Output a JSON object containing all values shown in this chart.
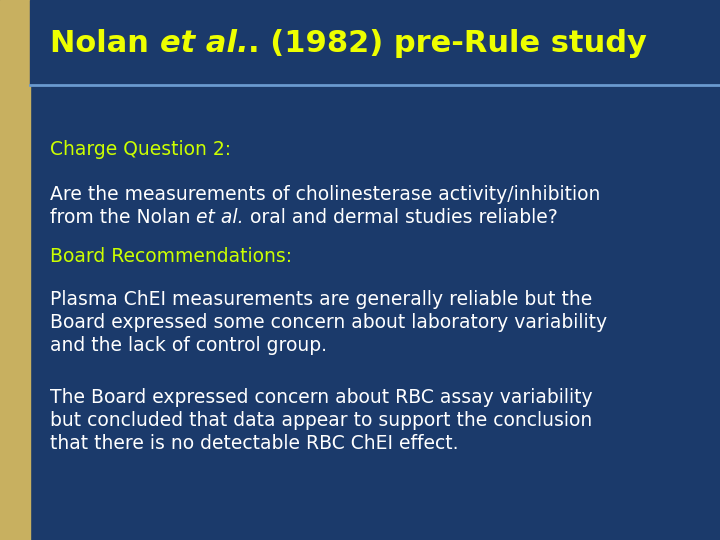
{
  "title_color": "#EEFF00",
  "title_bg_color": "#1B3A6B",
  "title_fontsize": 22,
  "body_bg_color": "#1B3A6B",
  "left_bar_color": "#C8B060",
  "divider_color": "#6A9AD0",
  "charge_label": "Charge Question 2:",
  "charge_color": "#CCFF00",
  "body_text_color": "#FFFFFF",
  "body_fontsize": 13.5,
  "label_fontsize": 13.5,
  "board_label": "Board Recommendations:",
  "para2_line1": "Plasma ChEI measurements are generally reliable but the",
  "para2_line2": "Board expressed some concern about laboratory variability",
  "para2_line3": "and the lack of control group.",
  "para3_line1": "The Board expressed concern about RBC assay variability",
  "para3_line2": "but concluded that data appear to support the conclusion",
  "para3_line3": "that there is no detectable RBC ChEI effect.",
  "line1_q": "Are the measurements of cholinesterase activity/inhibition",
  "line2_q_pre": "from the Nolan ",
  "line2_q_ital": "et al.",
  "line2_q_post": " oral and dermal studies reliable?"
}
